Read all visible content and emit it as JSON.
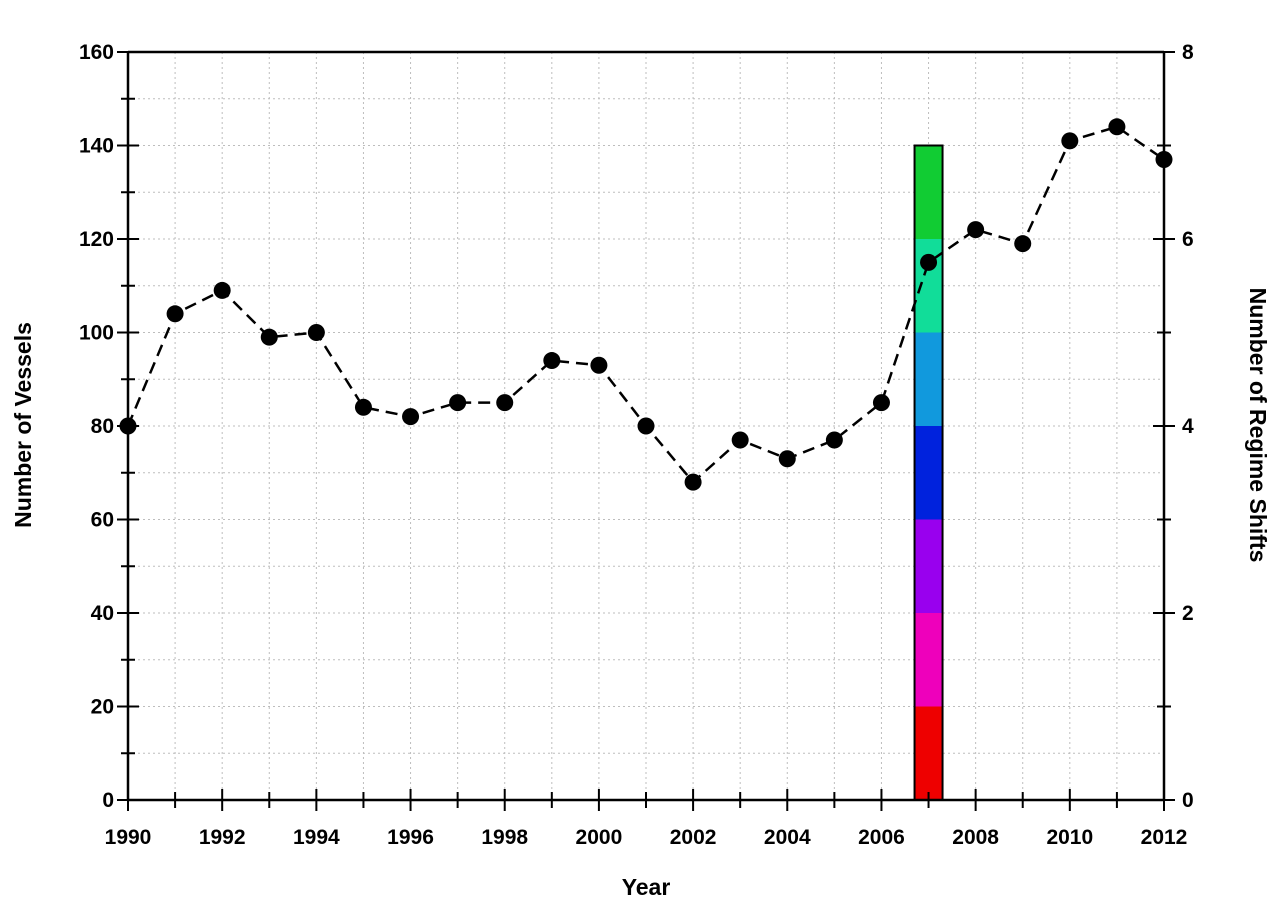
{
  "chart_data": {
    "type": "line",
    "xlabel": "Year",
    "ylabel": "Number of Vessels",
    "y2label": "Number of Regime Shifts",
    "xlim": [
      1990,
      2012
    ],
    "ylim": [
      0,
      160
    ],
    "y2lim": [
      0,
      8
    ],
    "x_ticks": [
      1990,
      1992,
      1994,
      1996,
      1998,
      2000,
      2002,
      2004,
      2006,
      2008,
      2010,
      2012
    ],
    "y_ticks": [
      0,
      20,
      40,
      60,
      80,
      100,
      120,
      140,
      160
    ],
    "y2_ticks": [
      0,
      2,
      4,
      6,
      8
    ],
    "grid": true,
    "series": [
      {
        "x": [
          1990,
          1991,
          1992,
          1993,
          1994,
          1995,
          1996,
          1997,
          1998,
          1999,
          2000,
          2001,
          2002,
          2003,
          2004,
          2005,
          2006,
          2007,
          2008,
          2009,
          2010,
          2011,
          2012
        ],
        "values": [
          80,
          104,
          109,
          99,
          100,
          84,
          82,
          85,
          85,
          94,
          93,
          80,
          68,
          77,
          73,
          77,
          85,
          115,
          122,
          119,
          141,
          144,
          137
        ],
        "color": "#000000",
        "style": "dashed-with-markers"
      }
    ],
    "regime_shift_bar": {
      "x": 2007,
      "axis": "right",
      "segments": [
        {
          "from": 0,
          "to": 1,
          "color": "#ee0000"
        },
        {
          "from": 1,
          "to": 2,
          "color": "#ee00bb"
        },
        {
          "from": 2,
          "to": 3,
          "color": "#9900ee"
        },
        {
          "from": 3,
          "to": 4,
          "color": "#0022dd"
        },
        {
          "from": 4,
          "to": 5,
          "color": "#1199dd"
        },
        {
          "from": 5,
          "to": 6,
          "color": "#11dd99"
        },
        {
          "from": 6,
          "to": 7,
          "color": "#11cc33"
        }
      ]
    }
  }
}
